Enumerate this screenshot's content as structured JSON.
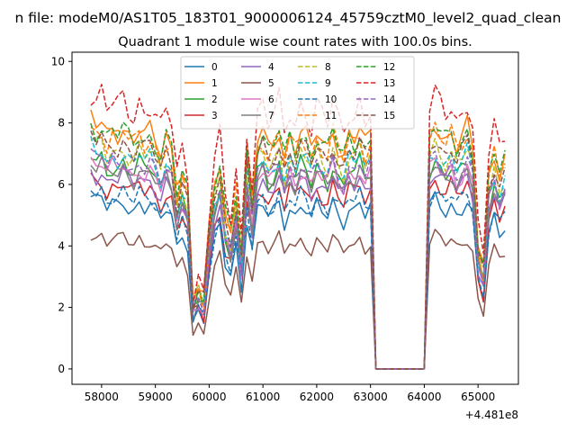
{
  "chart_data": {
    "type": "line",
    "suptitle": "n file: modeM0/AS1T05_183T01_9000006124_45759cztM0_level2_quad_clean",
    "title": "Quadrant 1 module wise count rates with 100.0s bins.",
    "xlabel": "",
    "ylabel": "",
    "x_offset_label": "+4.481e8",
    "xlim": [
      57450,
      65750
    ],
    "ylim": [
      -0.5,
      10.3
    ],
    "x_ticks": [
      58000,
      59000,
      60000,
      61000,
      62000,
      63000,
      64000,
      65000
    ],
    "x_tick_labels": [
      "58000",
      "59000",
      "60000",
      "61000",
      "62000",
      "63000",
      "64000",
      "65000"
    ],
    "y_ticks": [
      0,
      2,
      4,
      6,
      8,
      10
    ],
    "y_tick_labels": [
      "0",
      "2",
      "4",
      "6",
      "8",
      "10"
    ],
    "grid": false,
    "legend": {
      "placement": "top-center",
      "columns": 4
    },
    "profile": {
      "x": [
        57800,
        57900,
        58000,
        58100,
        58200,
        58300,
        58400,
        58500,
        58600,
        58700,
        58800,
        58900,
        59000,
        59100,
        59200,
        59300,
        59400,
        59500,
        59600,
        59700,
        59800,
        59900,
        60000,
        60100,
        60200,
        60300,
        60400,
        60500,
        60600,
        60700,
        60800,
        60900,
        61000,
        61100,
        61200,
        61300,
        61400,
        61500,
        61600,
        61700,
        61800,
        61900,
        62000,
        62100,
        62200,
        62300,
        62400,
        62500,
        62600,
        62700,
        62800,
        62900,
        63000,
        63100,
        63200,
        63300,
        63400,
        63500,
        63600,
        63700,
        63800,
        63900,
        64000,
        64100,
        64200,
        64300,
        64400,
        64500,
        64600,
        64700,
        64800,
        64900,
        65000,
        65100,
        65200,
        65300,
        65400,
        65500
      ],
      "y": [
        1.0,
        0.97,
        0.99,
        0.93,
        0.96,
        0.95,
        0.98,
        0.94,
        0.92,
        0.97,
        0.93,
        0.95,
        0.91,
        0.86,
        0.93,
        0.89,
        0.71,
        0.8,
        0.72,
        0.27,
        0.33,
        0.28,
        0.55,
        0.75,
        0.83,
        0.62,
        0.55,
        0.72,
        0.48,
        0.87,
        0.68,
        0.92,
        0.95,
        0.88,
        0.91,
        0.97,
        0.85,
        0.94,
        0.89,
        0.96,
        0.93,
        0.87,
        0.95,
        0.91,
        0.88,
        0.97,
        0.9,
        0.86,
        0.94,
        0.92,
        0.97,
        0.89,
        0.93,
        0.0,
        0.0,
        0.0,
        0.0,
        0.0,
        0.0,
        0.0,
        0.0,
        0.0,
        0.0,
        0.94,
        0.99,
        0.95,
        0.92,
        0.96,
        0.9,
        0.93,
        0.97,
        0.88,
        0.5,
        0.4,
        0.78,
        0.88,
        0.79,
        0.85
      ]
    },
    "series": [
      {
        "name": "0",
        "color": "#1f77b4",
        "dashed": false,
        "base": 5.6
      },
      {
        "name": "1",
        "color": "#ff7f0e",
        "dashed": false,
        "base": 8.1
      },
      {
        "name": "2",
        "color": "#2ca02c",
        "dashed": false,
        "base": 6.9
      },
      {
        "name": "3",
        "color": "#d62728",
        "dashed": false,
        "base": 6.2
      },
      {
        "name": "4",
        "color": "#9467bd",
        "dashed": false,
        "base": 6.5
      },
      {
        "name": "5",
        "color": "#8c564b",
        "dashed": false,
        "base": 4.4
      },
      {
        "name": "6",
        "color": "#e377c2",
        "dashed": false,
        "base": 6.8
      },
      {
        "name": "7",
        "color": "#7f7f7f",
        "dashed": false,
        "base": 6.7
      },
      {
        "name": "8",
        "color": "#bcbd22",
        "dashed": true,
        "base": 7.4
      },
      {
        "name": "9",
        "color": "#17becf",
        "dashed": true,
        "base": 7.2
      },
      {
        "name": "10",
        "color": "#1f77b4",
        "dashed": true,
        "base": 5.9
      },
      {
        "name": "11",
        "color": "#ff7f0e",
        "dashed": true,
        "base": 7.9
      },
      {
        "name": "12",
        "color": "#2ca02c",
        "dashed": true,
        "base": 8.0
      },
      {
        "name": "13",
        "color": "#d62728",
        "dashed": true,
        "base": 9.0
      },
      {
        "name": "14",
        "color": "#9467bd",
        "dashed": true,
        "base": 7.0
      },
      {
        "name": "15",
        "color": "#8c564b",
        "dashed": true,
        "base": 7.6
      }
    ]
  }
}
